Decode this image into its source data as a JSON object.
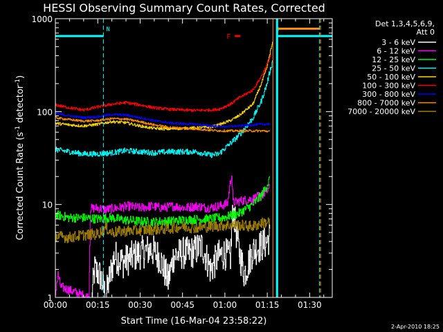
{
  "chart_data": {
    "type": "line",
    "title": "HESSI Observing Summary Count Rates, Corrected",
    "xlabel": "Start Time (16-Mar-04 23:58:22)",
    "ylabel": "Corrected Count Rate (s^-1 detector^-1)",
    "ylabel_parts": {
      "main": "Corrected Count Rate (s",
      "exp1": "-1",
      "mid": " detector",
      "exp2": "-1",
      "end": ")"
    },
    "y_scale": "log",
    "ylim": [
      1,
      1000
    ],
    "xlim": [
      "00:00",
      "01:38"
    ],
    "x_ticks": [
      "00:00",
      "00:15",
      "00:30",
      "00:45",
      "01:00",
      "01:15",
      "01:30"
    ],
    "y_ticks": [
      "1",
      "10",
      "100",
      "1000"
    ],
    "grid": false,
    "legend_position": "top-right",
    "legend_header": [
      "Det 1,3,4,5,6,9,",
      "Att 0"
    ],
    "timestamp": "2-Apr-2010 18:25",
    "markers": [
      {
        "label": "N",
        "time_min": 17,
        "color": "#00ffff",
        "linestyle": "dashed"
      },
      {
        "label": "S",
        "time_min": 77,
        "color": "#ff8c00",
        "linestyle": "solid"
      }
    ],
    "flare_flag": {
      "label": "F",
      "time_min": 64,
      "value": 650,
      "color": "#ff0000"
    },
    "end_line": {
      "time_min": 93.5,
      "color": "#00ffff",
      "linestyle": "dashed"
    },
    "series": [
      {
        "name": "3 - 6 keV",
        "color": "#ffffff",
        "points": [
          [
            13,
            1
          ],
          [
            14,
            2
          ],
          [
            16,
            1.7
          ],
          [
            18,
            1
          ],
          [
            19,
            1.5
          ],
          [
            21,
            2.8
          ],
          [
            24,
            2.4
          ],
          [
            28,
            2.8
          ],
          [
            30,
            3
          ],
          [
            34,
            3.3
          ],
          [
            37,
            2.7
          ],
          [
            40,
            1.5
          ],
          [
            42,
            2.8
          ],
          [
            45,
            3
          ],
          [
            48,
            3
          ],
          [
            52,
            3.6
          ],
          [
            55,
            2
          ],
          [
            58,
            2.8
          ],
          [
            60,
            3
          ],
          [
            62,
            2.6
          ],
          [
            63,
            9
          ],
          [
            65,
            3.2
          ],
          [
            67,
            1.8
          ],
          [
            70,
            3.2
          ],
          [
            73,
            3.6
          ],
          [
            75,
            4
          ],
          [
            76,
            4.5
          ]
        ]
      },
      {
        "name": "6 - 12 keV",
        "color": "#ff00ff",
        "points": [
          [
            0,
            1
          ],
          [
            1,
            1.8
          ],
          [
            2,
            1.3
          ],
          [
            12,
            1
          ],
          [
            12.5,
            9
          ],
          [
            15,
            9.2
          ],
          [
            18,
            8.8
          ],
          [
            22,
            9.2
          ],
          [
            26,
            9.6
          ],
          [
            30,
            9.2
          ],
          [
            34,
            9.6
          ],
          [
            38,
            9.2
          ],
          [
            42,
            9.6
          ],
          [
            46,
            9.2
          ],
          [
            50,
            9.6
          ],
          [
            54,
            9.2
          ],
          [
            58,
            9.6
          ],
          [
            61,
            10.2
          ],
          [
            62,
            17
          ],
          [
            62.5,
            22
          ],
          [
            63,
            10.5
          ],
          [
            66,
            11
          ],
          [
            70,
            11.5
          ],
          [
            73,
            12.5
          ],
          [
            75,
            14
          ],
          [
            76,
            15
          ]
        ]
      },
      {
        "name": "12 - 25 keV",
        "color": "#00ff00",
        "points": [
          [
            0,
            7.8
          ],
          [
            5,
            7.2
          ],
          [
            10,
            7.2
          ],
          [
            15,
            7
          ],
          [
            20,
            7.2
          ],
          [
            25,
            6.8
          ],
          [
            30,
            6.6
          ],
          [
            35,
            6.5
          ],
          [
            40,
            6.6
          ],
          [
            45,
            6.8
          ],
          [
            50,
            6.9
          ],
          [
            55,
            7
          ],
          [
            60,
            7.3
          ],
          [
            65,
            8
          ],
          [
            70,
            10
          ],
          [
            73,
            12.5
          ],
          [
            75,
            16
          ],
          [
            76,
            19
          ]
        ]
      },
      {
        "name": "25 - 50 keV",
        "color": "#00ffff",
        "points": [
          [
            0,
            39
          ],
          [
            5,
            37
          ],
          [
            10,
            35
          ],
          [
            15,
            35
          ],
          [
            20,
            36
          ],
          [
            25,
            38
          ],
          [
            30,
            37
          ],
          [
            35,
            36
          ],
          [
            40,
            37
          ],
          [
            45,
            37
          ],
          [
            50,
            37
          ],
          [
            55,
            34
          ],
          [
            58,
            35
          ],
          [
            60,
            40
          ],
          [
            65,
            55
          ],
          [
            70,
            85
          ],
          [
            73,
            130
          ],
          [
            75,
            200
          ],
          [
            76,
            270
          ],
          [
            77,
            350
          ]
        ]
      },
      {
        "name": "50 - 100 keV",
        "color": "#ffd700",
        "points": [
          [
            0,
            75
          ],
          [
            5,
            72
          ],
          [
            10,
            70
          ],
          [
            15,
            73
          ],
          [
            20,
            78
          ],
          [
            25,
            76
          ],
          [
            30,
            70
          ],
          [
            35,
            66
          ],
          [
            40,
            65
          ],
          [
            45,
            66
          ],
          [
            50,
            67
          ],
          [
            55,
            68
          ],
          [
            58,
            72
          ],
          [
            62,
            80
          ],
          [
            65,
            90
          ],
          [
            70,
            120
          ],
          [
            73,
            200
          ],
          [
            75,
            300
          ],
          [
            76,
            420
          ],
          [
            77,
            550
          ]
        ]
      },
      {
        "name": "100 - 300 keV",
        "color": "#ff0000",
        "points": [
          [
            0,
            118
          ],
          [
            5,
            110
          ],
          [
            10,
            104
          ],
          [
            15,
            112
          ],
          [
            20,
            120
          ],
          [
            25,
            125
          ],
          [
            30,
            118
          ],
          [
            35,
            110
          ],
          [
            40,
            106
          ],
          [
            45,
            104
          ],
          [
            50,
            103
          ],
          [
            55,
            104
          ],
          [
            58,
            106
          ],
          [
            62,
            120
          ],
          [
            65,
            140
          ],
          [
            70,
            170
          ],
          [
            73,
            240
          ],
          [
            75,
            320
          ],
          [
            76,
            380
          ],
          [
            76.5,
            420
          ]
        ]
      },
      {
        "name": "300 - 800 keV",
        "color": "#0000ff",
        "points": [
          [
            0,
            96
          ],
          [
            5,
            90
          ],
          [
            10,
            86
          ],
          [
            15,
            88
          ],
          [
            20,
            93
          ],
          [
            25,
            92
          ],
          [
            30,
            86
          ],
          [
            35,
            80
          ],
          [
            40,
            76
          ],
          [
            45,
            74
          ],
          [
            50,
            73
          ],
          [
            55,
            70
          ],
          [
            60,
            69
          ],
          [
            65,
            70
          ],
          [
            70,
            72
          ],
          [
            74,
            73
          ],
          [
            76,
            74
          ]
        ]
      },
      {
        "name": "800 - 7000 keV",
        "color": "#ff8c00",
        "points": [
          [
            0,
            86
          ],
          [
            5,
            82
          ],
          [
            10,
            79
          ],
          [
            15,
            80
          ],
          [
            20,
            84
          ],
          [
            25,
            83
          ],
          [
            30,
            78
          ],
          [
            35,
            72
          ],
          [
            40,
            68
          ],
          [
            45,
            66
          ],
          [
            50,
            65
          ],
          [
            55,
            63
          ],
          [
            60,
            62
          ],
          [
            65,
            62
          ],
          [
            70,
            62
          ],
          [
            74,
            62
          ],
          [
            76,
            61
          ]
        ]
      },
      {
        "name": "7000 - 20000 keV",
        "color": "#a08000",
        "points": [
          [
            0,
            4.6
          ],
          [
            5,
            4.4
          ],
          [
            10,
            4.7
          ],
          [
            15,
            4.8
          ],
          [
            18,
            5.6
          ],
          [
            20,
            5
          ],
          [
            25,
            5.2
          ],
          [
            30,
            5.3
          ],
          [
            35,
            5.4
          ],
          [
            40,
            5.5
          ],
          [
            45,
            5.8
          ],
          [
            50,
            5.6
          ],
          [
            55,
            5.8
          ],
          [
            60,
            6
          ],
          [
            65,
            6
          ],
          [
            70,
            5.8
          ],
          [
            73,
            6.3
          ],
          [
            76,
            6.5
          ]
        ]
      }
    ]
  }
}
